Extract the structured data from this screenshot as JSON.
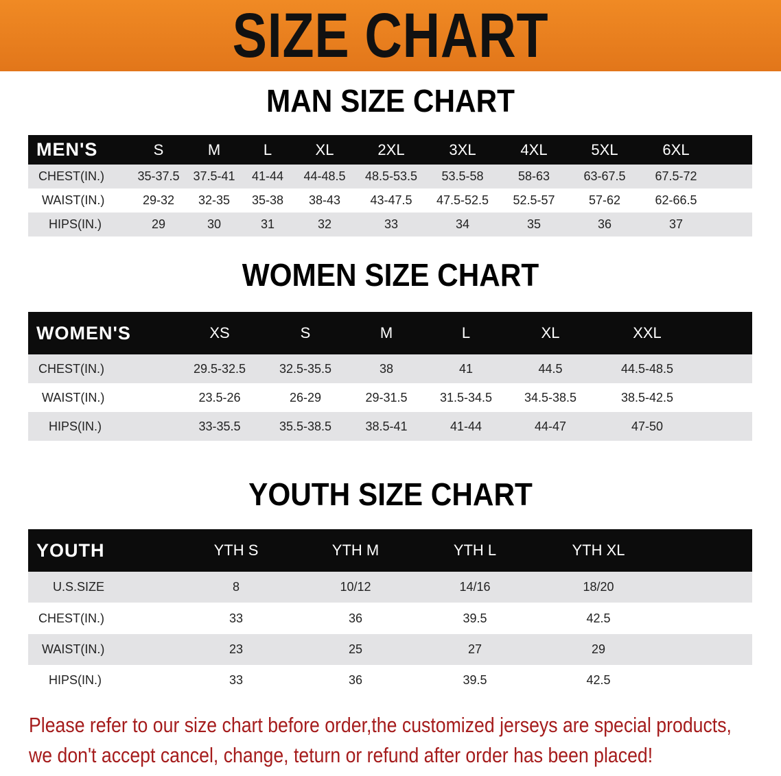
{
  "banner": {
    "title": "SIZE CHART",
    "color": "#e8801a"
  },
  "men": {
    "title": "MAN SIZE CHART",
    "header": [
      "MEN'S",
      "S",
      "M",
      "L",
      "XL",
      "2XL",
      "3XL",
      "4XL",
      "5XL",
      "6XL"
    ],
    "rows": [
      [
        "CHEST(IN.)",
        "35-37.5",
        "37.5-41",
        "41-44",
        "44-48.5",
        "48.5-53.5",
        "53.5-58",
        "58-63",
        "63-67.5",
        "67.5-72"
      ],
      [
        "WAIST(IN.)",
        "29-32",
        "32-35",
        "35-38",
        "38-43",
        "43-47.5",
        "47.5-52.5",
        "52.5-57",
        "57-62",
        "62-66.5"
      ],
      [
        "HIPS(IN.)",
        "29",
        "30",
        "31",
        "32",
        "33",
        "34",
        "35",
        "36",
        "37"
      ]
    ]
  },
  "women": {
    "title": "WOMEN SIZE CHART",
    "header": [
      "WOMEN'S",
      "XS",
      "S",
      "M",
      "L",
      "XL",
      "XXL"
    ],
    "rows": [
      [
        "CHEST(IN.)",
        "29.5-32.5",
        "32.5-35.5",
        "38",
        "41",
        "44.5",
        "44.5-48.5"
      ],
      [
        "WAIST(IN.)",
        "23.5-26",
        "26-29",
        "29-31.5",
        "31.5-34.5",
        "34.5-38.5",
        "38.5-42.5"
      ],
      [
        "HIPS(IN.)",
        "33-35.5",
        "35.5-38.5",
        "38.5-41",
        "41-44",
        "44-47",
        "47-50"
      ]
    ]
  },
  "youth": {
    "title": "YOUTH SIZE CHART",
    "header": [
      "YOUTH",
      "YTH S",
      "YTH M",
      "YTH L",
      "YTH XL"
    ],
    "rows": [
      [
        "U.S.SIZE",
        "8",
        "10/12",
        "14/16",
        "18/20"
      ],
      [
        "CHEST(IN.)",
        "33",
        "36",
        "39.5",
        "42.5"
      ],
      [
        "WAIST(IN.)",
        "23",
        "25",
        "27",
        "29"
      ],
      [
        "HIPS(IN.)",
        "33",
        "36",
        "39.5",
        "42.5"
      ]
    ]
  },
  "note": {
    "line1": "Please refer to our size chart before order,the customized jerseys are special products,",
    "line2": "we don't accept cancel, change, teturn or refund after order has been placed!",
    "color": "#a51c1c"
  }
}
